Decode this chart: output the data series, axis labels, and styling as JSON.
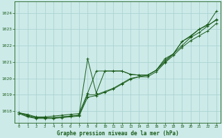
{
  "title": "Graphe pression niveau de la mer (hPa)",
  "background_color": "#cceae8",
  "grid_color": "#aad4d2",
  "line_color": "#1a5c1a",
  "xlim": [
    -0.5,
    23.5
  ],
  "ylim": [
    1017.3,
    1024.7
  ],
  "xticks": [
    0,
    1,
    2,
    3,
    4,
    5,
    6,
    7,
    8,
    9,
    10,
    11,
    12,
    13,
    14,
    15,
    16,
    17,
    18,
    19,
    20,
    21,
    22,
    23
  ],
  "yticks": [
    1018,
    1019,
    1020,
    1021,
    1022,
    1023,
    1024
  ],
  "series": [
    {
      "x": [
        0,
        1,
        2,
        3,
        4,
        5,
        6,
        7,
        8,
        9,
        10,
        11,
        12,
        13,
        14,
        15,
        16,
        17,
        18,
        19,
        20,
        21,
        22,
        23
      ],
      "y": [
        1017.9,
        1017.8,
        1017.65,
        1017.65,
        1017.7,
        1017.75,
        1017.8,
        1017.85,
        1019.1,
        1020.45,
        1020.45,
        1020.45,
        1020.45,
        1020.25,
        1020.2,
        1020.2,
        1020.5,
        1021.1,
        1021.5,
        1022.25,
        1022.6,
        1023.0,
        1023.3,
        1024.1
      ]
    },
    {
      "x": [
        0,
        1,
        2,
        3,
        4,
        5,
        6,
        7,
        8,
        9,
        10,
        11,
        12,
        13,
        14,
        15,
        16,
        17,
        18,
        19,
        20,
        21,
        22,
        23
      ],
      "y": [
        1017.9,
        1017.7,
        1017.6,
        1017.6,
        1017.6,
        1017.65,
        1017.7,
        1017.75,
        1019.0,
        1019.0,
        1019.2,
        1019.4,
        1019.7,
        1020.0,
        1020.1,
        1020.2,
        1020.5,
        1021.0,
        1021.5,
        1022.0,
        1022.5,
        1022.8,
        1023.2,
        1023.6
      ]
    },
    {
      "x": [
        0,
        1,
        2,
        3,
        4,
        5,
        6,
        7,
        8,
        9,
        10,
        11,
        12,
        13,
        14,
        15,
        16,
        17,
        18,
        19,
        20,
        21,
        22,
        23
      ],
      "y": [
        1017.9,
        1017.75,
        1017.6,
        1017.6,
        1017.6,
        1017.65,
        1017.7,
        1017.75,
        1021.2,
        1019.1,
        1020.45,
        1020.45,
        1020.45,
        1020.25,
        1020.2,
        1020.2,
        1020.5,
        1021.2,
        1021.5,
        1022.25,
        1022.55,
        1023.0,
        1023.25,
        1023.55
      ]
    },
    {
      "x": [
        0,
        1,
        2,
        3,
        4,
        5,
        6,
        7,
        8,
        9,
        10,
        11,
        12,
        13,
        14,
        15,
        16,
        17,
        18,
        19,
        20,
        21,
        22,
        23
      ],
      "y": [
        1017.85,
        1017.65,
        1017.55,
        1017.55,
        1017.55,
        1017.6,
        1017.65,
        1017.7,
        1018.85,
        1018.95,
        1019.15,
        1019.35,
        1019.65,
        1019.95,
        1020.1,
        1020.1,
        1020.4,
        1020.95,
        1021.4,
        1021.9,
        1022.3,
        1022.6,
        1022.9,
        1023.35
      ]
    }
  ]
}
